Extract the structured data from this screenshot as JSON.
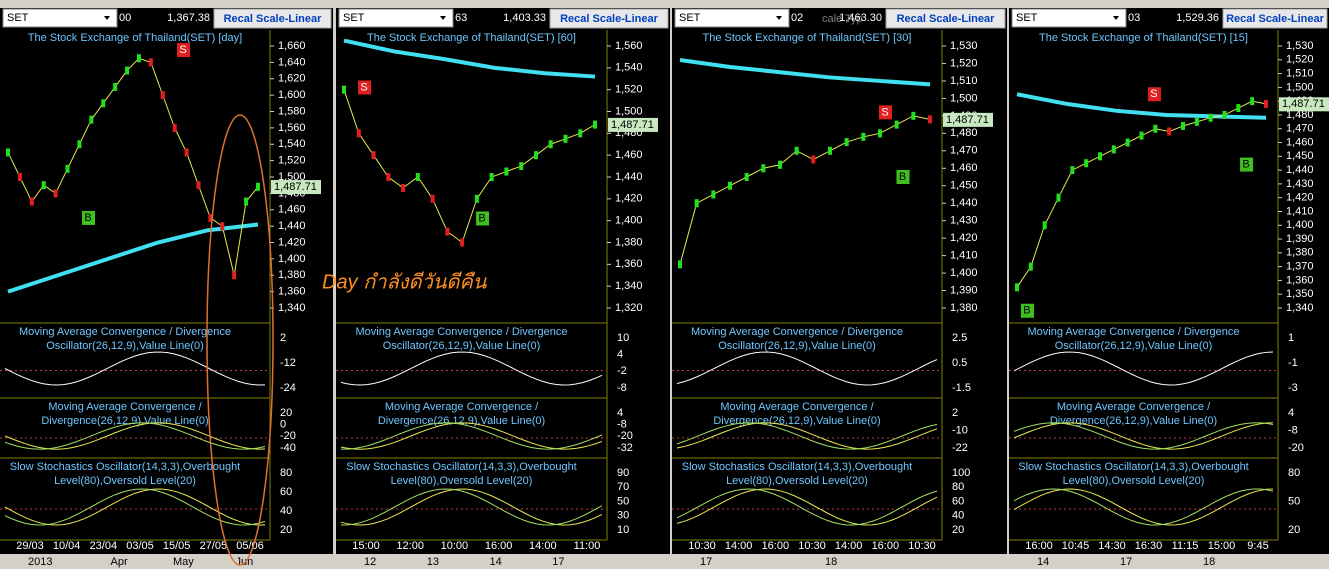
{
  "annotation": "Day กำลังดีวันดีคืน",
  "panels": [
    {
      "symbol": "SET",
      "code": "00",
      "value": "1,367.38",
      "button": "Recal Scale-Linear",
      "title": "The Stock Exchange of Thailand(SET) [day]",
      "price_ticks": [
        {
          "value": 1340,
          "label": "1,340"
        },
        {
          "value": 1360,
          "label": "1,360"
        },
        {
          "value": 1380,
          "label": "1,380"
        },
        {
          "value": 1400,
          "label": "1,400"
        },
        {
          "value": 1420,
          "label": "1,420"
        },
        {
          "value": 1440,
          "label": "1,440"
        },
        {
          "value": 1460,
          "label": "1,460"
        },
        {
          "value": 1480,
          "label": "1,480"
        },
        {
          "value": 1500,
          "label": "1,500"
        },
        {
          "value": 1520,
          "label": "1,520"
        },
        {
          "value": 1540,
          "label": "1,540"
        },
        {
          "value": 1560,
          "label": "1,560"
        },
        {
          "value": 1580,
          "label": "1,580"
        },
        {
          "value": 1600,
          "label": "1,600"
        },
        {
          "value": 1620,
          "label": "1,620"
        },
        {
          "value": 1640,
          "label": "1,640"
        },
        {
          "value": 1660,
          "label": "1,660"
        }
      ],
      "last_price": {
        "value": 1487.71,
        "label": "1,487.71"
      },
      "closes": [
        1530,
        1500,
        1470,
        1490,
        1480,
        1510,
        1540,
        1570,
        1590,
        1610,
        1630,
        1645,
        1640,
        1600,
        1560,
        1530,
        1490,
        1450,
        1440,
        1380,
        1470,
        1488
      ],
      "long_ma": [
        1360,
        1380,
        1400,
        1420,
        1435,
        1442
      ],
      "signals": [
        {
          "label": "B",
          "price": 1450
        },
        {
          "label": "S",
          "price": 1655
        }
      ],
      "indicators": [
        {
          "title": [
            "Moving Average Convergence / Divergence",
            "Oscillator(26,12,9),Value Line(0)"
          ],
          "ticks": [
            2,
            -12,
            -24
          ]
        },
        {
          "title": [
            "Moving Average Convergence /",
            "Divergence(26,12,9),Value Line(0)"
          ],
          "ticks": [
            20,
            0,
            -20,
            -40
          ]
        },
        {
          "title": [
            "Slow Stochastics Oscillator(14,3,3),Overbought",
            "Level(80),Oversold Level(20)"
          ],
          "ticks": [
            80,
            60,
            40,
            20
          ]
        }
      ],
      "time_labels": [
        "29/03",
        "10/04",
        "23/04",
        "03/05",
        "15/05",
        "27/05",
        "05/06"
      ],
      "date_labels": [
        "2013",
        "Apr",
        "May",
        "Jun"
      ]
    },
    {
      "symbol": "SET",
      "code": "63",
      "value": "1,403.33",
      "button": "Recal Scale-Linear",
      "title": "The Stock Exchange of Thailand(SET) [60]",
      "price_ticks": [
        {
          "value": 1320,
          "label": "1,320"
        },
        {
          "value": 1340,
          "label": "1,340"
        },
        {
          "value": 1360,
          "label": "1,360"
        },
        {
          "value": 1380,
          "label": "1,380"
        },
        {
          "value": 1400,
          "label": "1,400"
        },
        {
          "value": 1420,
          "label": "1,420"
        },
        {
          "value": 1440,
          "label": "1,440"
        },
        {
          "value": 1460,
          "label": "1,460"
        },
        {
          "value": 1480,
          "label": "1,480"
        },
        {
          "value": 1500,
          "label": "1,500"
        },
        {
          "value": 1520,
          "label": "1,520"
        },
        {
          "value": 1540,
          "label": "1,540"
        },
        {
          "value": 1560,
          "label": "1,560"
        }
      ],
      "last_price": {
        "value": 1487.71,
        "label": "1,487.71"
      },
      "closes": [
        1520,
        1480,
        1460,
        1440,
        1430,
        1440,
        1420,
        1390,
        1380,
        1420,
        1440,
        1445,
        1450,
        1460,
        1470,
        1475,
        1480,
        1488
      ],
      "long_ma": [
        1565,
        1555,
        1548,
        1540,
        1535,
        1532
      ],
      "signals": [
        {
          "label": "S",
          "price": 1522
        },
        {
          "label": "B",
          "price": 1402
        }
      ],
      "indicators": [
        {
          "title": [
            "Moving Average Convergence / Divergence",
            "Oscillator(26,12,9),Value Line(0)"
          ],
          "ticks": [
            10,
            4,
            -2,
            -8
          ]
        },
        {
          "title": [
            "Moving Average Convergence /",
            "Divergence(26,12,9),Value Line(0)"
          ],
          "ticks": [
            4,
            -8,
            -20,
            -32
          ]
        },
        {
          "title": [
            "Slow Stochastics Oscillator(14,3,3),Overbought",
            "Level(80),Oversold Level(20)"
          ],
          "ticks": [
            90,
            70,
            50,
            30,
            10
          ]
        }
      ],
      "time_labels": [
        "15:00",
        "12:00",
        "10:00",
        "16:00",
        "14:00",
        "11:00"
      ],
      "date_labels": [
        "12",
        "13",
        "14",
        "17"
      ]
    },
    {
      "symbol": "SET",
      "code": "02",
      "overlay_text": "cale Typ",
      "value": "1,463.30",
      "button": "Recal Scale-Linear",
      "title": "The Stock Exchange of Thailand(SET) [30]",
      "price_ticks": [
        {
          "value": 1380,
          "label": "1,380"
        },
        {
          "value": 1390,
          "label": "1,390"
        },
        {
          "value": 1400,
          "label": "1,400"
        },
        {
          "value": 1410,
          "label": "1,410"
        },
        {
          "value": 1420,
          "label": "1,420"
        },
        {
          "value": 1430,
          "label": "1,430"
        },
        {
          "value": 1440,
          "label": "1,440"
        },
        {
          "value": 1450,
          "label": "1,450"
        },
        {
          "value": 1460,
          "label": "1,460"
        },
        {
          "value": 1470,
          "label": "1,470"
        },
        {
          "value": 1480,
          "label": "1,480"
        },
        {
          "value": 1490,
          "label": "1,490"
        },
        {
          "value": 1500,
          "label": "1,500"
        },
        {
          "value": 1510,
          "label": "1,510"
        },
        {
          "value": 1520,
          "label": "1,520"
        },
        {
          "value": 1530,
          "label": "1,530"
        }
      ],
      "last_price": {
        "value": 1487.71,
        "label": "1,487.71"
      },
      "closes": [
        1405,
        1440,
        1445,
        1450,
        1455,
        1460,
        1462,
        1470,
        1465,
        1470,
        1475,
        1478,
        1480,
        1485,
        1490,
        1488
      ],
      "long_ma": [
        1522,
        1518,
        1515,
        1512,
        1510,
        1508
      ],
      "signals": [
        {
          "label": "S",
          "price": 1492
        },
        {
          "label": "B",
          "price": 1455
        }
      ],
      "indicators": [
        {
          "title": [
            "Moving Average Convergence / Divergence",
            "Oscillator(26,12,9),Value Line(0)"
          ],
          "ticks": [
            2.5,
            0.5,
            -1.5
          ]
        },
        {
          "title": [
            "Moving Average Convergence /",
            "Divergence(26,12,9),Value Line(0)"
          ],
          "ticks": [
            2,
            -10,
            -22
          ]
        },
        {
          "title": [
            "Slow Stochastics Oscillator(14,3,3),Overbought",
            "Level(80),Oversold Level(20)"
          ],
          "ticks": [
            100,
            80,
            60,
            40,
            20
          ]
        }
      ],
      "time_labels": [
        "10:30",
        "14:00",
        "16:00",
        "10:30",
        "14:00",
        "16:00",
        "10:30"
      ],
      "date_labels": [
        "17",
        "18"
      ]
    },
    {
      "symbol": "SET",
      "code": "03",
      "value": "1,529.36",
      "button": "Recal Scale-Linear",
      "title": "The Stock Exchange of Thailand(SET) [15]",
      "price_ticks": [
        {
          "value": 1340,
          "label": "1,340"
        },
        {
          "value": 1350,
          "label": "1,350"
        },
        {
          "value": 1360,
          "label": "1,360"
        },
        {
          "value": 1370,
          "label": "1,370"
        },
        {
          "value": 1380,
          "label": "1,380"
        },
        {
          "value": 1390,
          "label": "1,390"
        },
        {
          "value": 1400,
          "label": "1,400"
        },
        {
          "value": 1410,
          "label": "1,410"
        },
        {
          "value": 1420,
          "label": "1,420"
        },
        {
          "value": 1430,
          "label": "1,430"
        },
        {
          "value": 1440,
          "label": "1,440"
        },
        {
          "value": 1450,
          "label": "1,450"
        },
        {
          "value": 1460,
          "label": "1,460"
        },
        {
          "value": 1470,
          "label": "1,470"
        },
        {
          "value": 1480,
          "label": "1,480"
        },
        {
          "value": 1490,
          "label": "1,490"
        },
        {
          "value": 1500,
          "label": "1,500"
        },
        {
          "value": 1510,
          "label": "1,510"
        },
        {
          "value": 1520,
          "label": "1,520"
        },
        {
          "value": 1530,
          "label": "1,530"
        }
      ],
      "last_price": {
        "value": 1487.71,
        "label": "1,487.71"
      },
      "closes": [
        1355,
        1370,
        1400,
        1420,
        1440,
        1445,
        1450,
        1455,
        1460,
        1465,
        1470,
        1468,
        1472,
        1475,
        1478,
        1480,
        1485,
        1490,
        1488
      ],
      "long_ma": [
        1495,
        1488,
        1483,
        1480,
        1479,
        1478
      ],
      "signals": [
        {
          "label": "B",
          "price": 1338
        },
        {
          "label": "S",
          "price": 1495
        },
        {
          "label": "B",
          "price": 1444
        }
      ],
      "indicators": [
        {
          "title": [
            "Moving Average Convergence / Divergence",
            "Oscillator(26,12,9),Value Line(0)"
          ],
          "ticks": [
            1,
            -1,
            -3
          ]
        },
        {
          "title": [
            "Moving Average Convergence /",
            "Divergence(26,12,9),Value Line(0)"
          ],
          "ticks": [
            4,
            -8,
            -20
          ]
        },
        {
          "title": [
            "Slow Stochastics Oscillator(14,3,3),Overbought",
            "Level(80),Oversold Level(20)"
          ],
          "ticks": [
            80,
            50,
            20
          ]
        }
      ],
      "time_labels": [
        "16:00",
        "10:45",
        "14:30",
        "16:30",
        "11:15",
        "15:00",
        "9:45"
      ],
      "date_labels": [
        "14",
        "17",
        "18"
      ]
    }
  ]
}
